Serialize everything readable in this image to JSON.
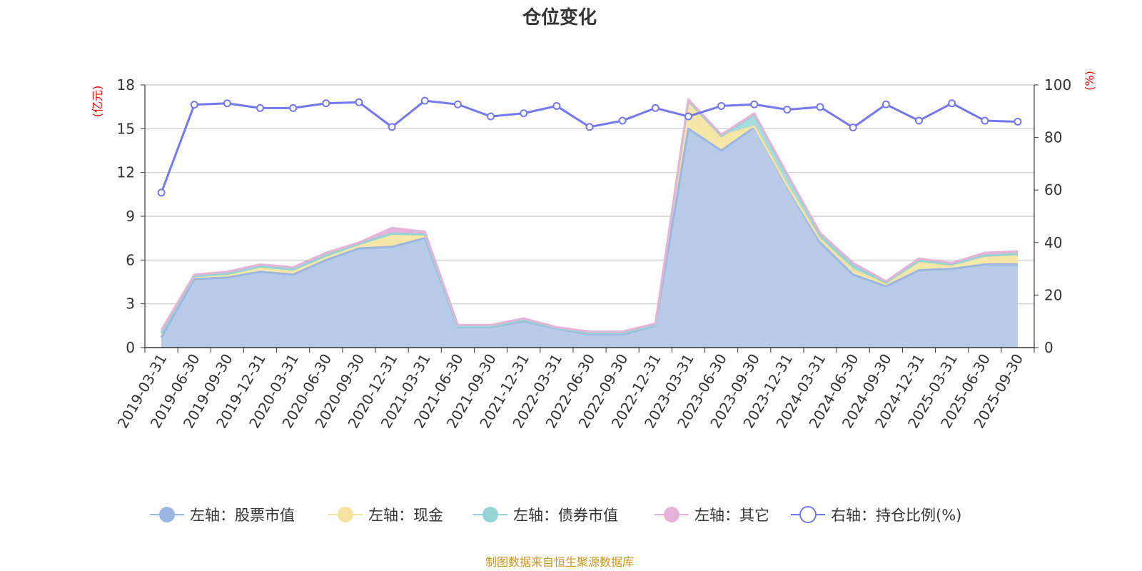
{
  "chart_data": {
    "type": "area",
    "title": "仓位变化",
    "left_axis": {
      "unit": "(亿元)",
      "ylim": [
        0,
        18
      ],
      "ticks": [
        "0",
        "3",
        "6",
        "9",
        "12",
        "15",
        "18"
      ]
    },
    "right_axis": {
      "unit": "(%)",
      "ylim": [
        0,
        100
      ],
      "ticks": [
        "0",
        "20",
        "40",
        "60",
        "80",
        "100"
      ]
    },
    "categories": [
      "2019-03-31",
      "2019-06-30",
      "2019-09-30",
      "2019-12-31",
      "2020-03-31",
      "2020-06-30",
      "2020-09-30",
      "2020-12-31",
      "2021-03-31",
      "2021-06-30",
      "2021-09-30",
      "2021-12-31",
      "2022-03-31",
      "2022-06-30",
      "2022-09-30",
      "2022-12-31",
      "2023-03-31",
      "2023-06-30",
      "2023-09-30",
      "2023-12-31",
      "2024-03-31",
      "2024-06-30",
      "2024-09-30",
      "2024-12-31",
      "2025-03-31",
      "2025-06-30",
      "2025-09-30"
    ],
    "series": [
      {
        "name": "左轴：股票市值",
        "axis": "left",
        "stack": true,
        "color": "#9bb6e0",
        "fill": "#b8cce9",
        "values": [
          0.7,
          4.7,
          4.8,
          5.2,
          5.0,
          6.0,
          6.8,
          6.9,
          7.5,
          1.4,
          1.4,
          1.8,
          1.3,
          0.9,
          0.9,
          1.5,
          15.0,
          13.5,
          15.1,
          11.0,
          7.2,
          5.0,
          4.2,
          5.3,
          5.4,
          5.7,
          5.7
        ]
      },
      {
        "name": "左轴：现金",
        "axis": "left",
        "stack": true,
        "color": "#f5e3a0",
        "fill": "#f7e7a9",
        "values": [
          0.3,
          0.2,
          0.25,
          0.25,
          0.3,
          0.3,
          0.3,
          0.9,
          0.25,
          0.05,
          0.05,
          0.1,
          0.05,
          0.1,
          0.1,
          0.05,
          1.9,
          1.0,
          0.05,
          0.1,
          0.2,
          0.3,
          0.15,
          0.55,
          0.2,
          0.6,
          0.7
        ]
      },
      {
        "name": "左轴：债券市值",
        "axis": "left",
        "stack": true,
        "color": "#94d4d4",
        "fill": "#a9dcdc",
        "values": [
          0,
          0,
          0,
          0.1,
          0.05,
          0,
          0,
          0,
          0,
          0,
          0,
          0,
          0,
          0,
          0,
          0,
          0,
          0,
          0.8,
          0.7,
          0.25,
          0.3,
          0.1,
          0.1,
          0.1,
          0,
          0
        ]
      },
      {
        "name": "左轴：其它",
        "axis": "left",
        "stack": true,
        "color": "#e6b3d8",
        "fill": "#e6b3d8",
        "values": [
          0.2,
          0.1,
          0.15,
          0.15,
          0.15,
          0.2,
          0.1,
          0.4,
          0.2,
          0.1,
          0.1,
          0.1,
          0.05,
          0.1,
          0.1,
          0.1,
          0.1,
          0.1,
          0.1,
          0.1,
          0.2,
          0.2,
          0.1,
          0.15,
          0.1,
          0.2,
          0.2
        ]
      },
      {
        "name": "右轴：持仓比例(%)",
        "axis": "right",
        "stack": false,
        "color": "#7378f0",
        "fill": "none",
        "values": [
          59,
          92.5,
          93,
          91.2,
          91.2,
          93,
          93.4,
          84,
          94,
          92.6,
          88,
          89.2,
          92,
          84,
          86.4,
          91.2,
          88,
          92,
          92.6,
          90.6,
          91.6,
          83.8,
          92.6,
          86.4,
          93,
          86.4,
          86
        ]
      }
    ]
  },
  "footer": {
    "source": "制图数据来自恒生聚源数据库"
  }
}
